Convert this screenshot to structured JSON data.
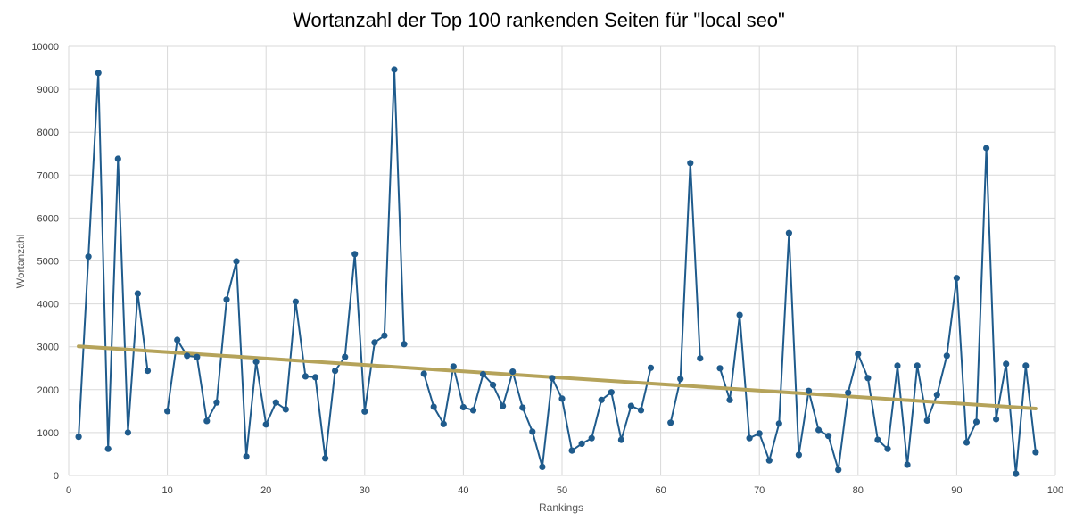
{
  "chart_data": {
    "type": "line",
    "title": "Wortanzahl der Top 100 rankenden Seiten für \"local seo\"",
    "xlabel": "Rankings",
    "ylabel": "Wortanzahl",
    "xlim": [
      0,
      100
    ],
    "ylim": [
      0,
      10000
    ],
    "x_ticks": [
      "0",
      "10",
      "20",
      "30",
      "40",
      "50",
      "60",
      "70",
      "80",
      "90",
      "100"
    ],
    "y_ticks": [
      "0",
      "1000",
      "2000",
      "3000",
      "4000",
      "5000",
      "6000",
      "7000",
      "8000",
      "9000",
      "10000"
    ],
    "grid": true,
    "legend": "none",
    "colors": {
      "series": "#1f5b8c",
      "trend": "#b5a35a",
      "grid": "#d9d9d9"
    },
    "series": [
      {
        "points": [
          [
            [
              1,
              900
            ],
            [
              2,
              5100
            ],
            [
              3,
              9380
            ],
            [
              4,
              620
            ],
            [
              5,
              7380
            ],
            [
              6,
              1000
            ],
            [
              7,
              4240
            ],
            [
              8,
              2440
            ]
          ],
          [
            [
              10,
              1500
            ],
            [
              11,
              3160
            ],
            [
              12,
              2790
            ],
            [
              13,
              2760
            ],
            [
              14,
              1270
            ],
            [
              15,
              1700
            ],
            [
              16,
              4100
            ],
            [
              17,
              4990
            ],
            [
              18,
              440
            ],
            [
              19,
              2650
            ],
            [
              20,
              1190
            ],
            [
              21,
              1700
            ],
            [
              22,
              1540
            ],
            [
              23,
              4050
            ],
            [
              24,
              2310
            ],
            [
              25,
              2290
            ],
            [
              26,
              400
            ],
            [
              27,
              2440
            ],
            [
              28,
              2760
            ],
            [
              29,
              5160
            ],
            [
              30,
              1490
            ],
            [
              31,
              3100
            ],
            [
              32,
              3260
            ],
            [
              33,
              9460
            ],
            [
              34,
              3060
            ]
          ],
          [
            [
              36,
              2370
            ],
            [
              37,
              1600
            ],
            [
              38,
              1200
            ],
            [
              39,
              2540
            ],
            [
              40,
              1590
            ],
            [
              41,
              1520
            ],
            [
              42,
              2360
            ],
            [
              43,
              2110
            ],
            [
              44,
              1620
            ],
            [
              45,
              2420
            ],
            [
              46,
              1580
            ],
            [
              47,
              1020
            ],
            [
              48,
              200
            ],
            [
              49,
              2270
            ],
            [
              50,
              1790
            ],
            [
              51,
              580
            ],
            [
              52,
              740
            ],
            [
              53,
              870
            ],
            [
              54,
              1760
            ],
            [
              55,
              1940
            ],
            [
              56,
              830
            ],
            [
              57,
              1620
            ],
            [
              58,
              1520
            ],
            [
              59,
              2510
            ]
          ],
          [
            [
              61,
              1230
            ],
            [
              62,
              2250
            ],
            [
              63,
              7280
            ],
            [
              64,
              2730
            ]
          ],
          [
            [
              66,
              2500
            ],
            [
              67,
              1760
            ],
            [
              68,
              3740
            ],
            [
              69,
              870
            ],
            [
              70,
              980
            ],
            [
              71,
              350
            ],
            [
              72,
              1210
            ],
            [
              73,
              5650
            ],
            [
              74,
              480
            ],
            [
              75,
              1970
            ],
            [
              76,
              1060
            ],
            [
              77,
              920
            ],
            [
              78,
              130
            ],
            [
              79,
              1930
            ],
            [
              80,
              2830
            ],
            [
              81,
              2270
            ],
            [
              82,
              830
            ],
            [
              83,
              620
            ],
            [
              84,
              2560
            ],
            [
              85,
              250
            ],
            [
              86,
              2560
            ],
            [
              87,
              1280
            ],
            [
              88,
              1880
            ],
            [
              89,
              2790
            ],
            [
              90,
              4600
            ],
            [
              91,
              770
            ],
            [
              92,
              1250
            ],
            [
              93,
              7630
            ],
            [
              94,
              1310
            ],
            [
              95,
              2600
            ],
            [
              96,
              40
            ],
            [
              97,
              2560
            ],
            [
              98,
              540
            ]
          ]
        ]
      }
    ],
    "trendline": {
      "x": [
        1,
        98
      ],
      "y": [
        3010,
        1560
      ]
    }
  }
}
